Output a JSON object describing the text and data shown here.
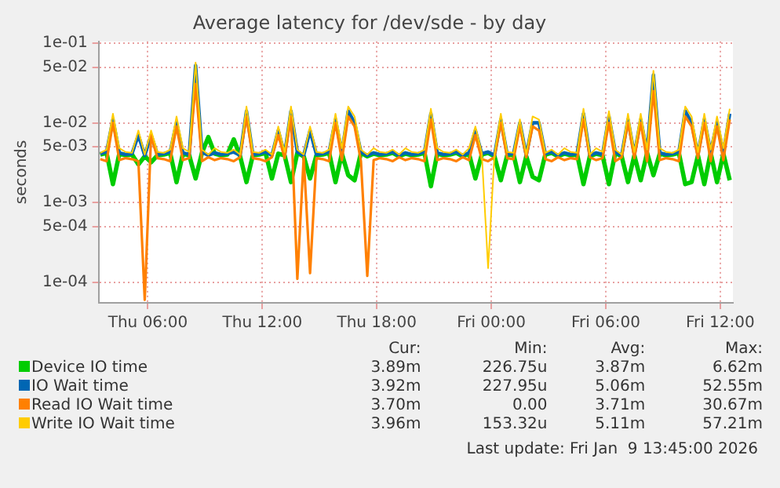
{
  "chart_data": {
    "type": "line",
    "title": "Average latency for /dev/sde - by day",
    "ylabel": "seconds",
    "log": "y",
    "grid": true,
    "legend": "bottom",
    "marker": "none",
    "line_style": "solid",
    "x": [
      "2026-01-08T03:30",
      "2026-01-08T03:50",
      "2026-01-08T04:10",
      "2026-01-08T04:30",
      "2026-01-08T04:50",
      "2026-01-08T05:10",
      "2026-01-08T05:30",
      "2026-01-08T05:50",
      "2026-01-08T06:10",
      "2026-01-08T06:30",
      "2026-01-08T06:50",
      "2026-01-08T07:10",
      "2026-01-08T07:30",
      "2026-01-08T07:50",
      "2026-01-08T08:10",
      "2026-01-08T08:30",
      "2026-01-08T08:50",
      "2026-01-08T09:10",
      "2026-01-08T09:30",
      "2026-01-08T09:50",
      "2026-01-08T10:10",
      "2026-01-08T10:30",
      "2026-01-08T10:50",
      "2026-01-08T11:10",
      "2026-01-08T11:30",
      "2026-01-08T11:50",
      "2026-01-08T12:10",
      "2026-01-08T12:30",
      "2026-01-08T12:50",
      "2026-01-08T13:10",
      "2026-01-08T13:30",
      "2026-01-08T13:50",
      "2026-01-08T14:10",
      "2026-01-08T14:30",
      "2026-01-08T14:50",
      "2026-01-08T15:10",
      "2026-01-08T15:30",
      "2026-01-08T15:50",
      "2026-01-08T16:10",
      "2026-01-08T16:30",
      "2026-01-08T16:50",
      "2026-01-08T17:10",
      "2026-01-08T17:30",
      "2026-01-08T17:50",
      "2026-01-08T18:10",
      "2026-01-08T18:30",
      "2026-01-08T18:50",
      "2026-01-08T19:10",
      "2026-01-08T19:30",
      "2026-01-08T19:50",
      "2026-01-08T20:10",
      "2026-01-08T20:30",
      "2026-01-08T20:50",
      "2026-01-08T21:10",
      "2026-01-08T21:30",
      "2026-01-08T21:50",
      "2026-01-08T22:10",
      "2026-01-08T22:30",
      "2026-01-08T22:50",
      "2026-01-08T23:10",
      "2026-01-08T23:30",
      "2026-01-08T23:50",
      "2026-01-09T00:10",
      "2026-01-09T00:30",
      "2026-01-09T00:50",
      "2026-01-09T01:10",
      "2026-01-09T01:30",
      "2026-01-09T01:50",
      "2026-01-09T02:10",
      "2026-01-09T02:30",
      "2026-01-09T02:50",
      "2026-01-09T03:10",
      "2026-01-09T03:30",
      "2026-01-09T03:50",
      "2026-01-09T04:10",
      "2026-01-09T04:30",
      "2026-01-09T04:50",
      "2026-01-09T05:10",
      "2026-01-09T05:30",
      "2026-01-09T05:50",
      "2026-01-09T06:10",
      "2026-01-09T06:30",
      "2026-01-09T06:50",
      "2026-01-09T07:10",
      "2026-01-09T07:30",
      "2026-01-09T07:50",
      "2026-01-09T08:10",
      "2026-01-09T08:30",
      "2026-01-09T08:50",
      "2026-01-09T09:10",
      "2026-01-09T09:30",
      "2026-01-09T09:50",
      "2026-01-09T10:10",
      "2026-01-09T10:30",
      "2026-01-09T10:50",
      "2026-01-09T11:10",
      "2026-01-09T11:30",
      "2026-01-09T11:50",
      "2026-01-09T12:10",
      "2026-01-09T12:30"
    ],
    "xlim": [
      "2026-01-08T03:25",
      "2026-01-09T12:40"
    ],
    "xticks": [
      {
        "value": "2026-01-08T06:00",
        "label": "Thu 06:00"
      },
      {
        "value": "2026-01-08T12:00",
        "label": "Thu 12:00"
      },
      {
        "value": "2026-01-08T18:00",
        "label": "Thu 18:00"
      },
      {
        "value": "2026-01-09T00:00",
        "label": "Fri 00:00"
      },
      {
        "value": "2026-01-09T06:00",
        "label": "Fri 06:00"
      },
      {
        "value": "2026-01-09T12:00",
        "label": "Fri 12:00"
      }
    ],
    "ylim": [
      5.5e-05,
      0.105
    ],
    "yticks": [
      {
        "value": 0.0001,
        "label": "1e-04"
      },
      {
        "value": 0.0005,
        "label": "5e-04"
      },
      {
        "value": 0.001,
        "label": "1e-03"
      },
      {
        "value": 0.005,
        "label": "5e-03"
      },
      {
        "value": 0.01,
        "label": "1e-02"
      },
      {
        "value": 0.05,
        "label": "5e-02"
      },
      {
        "value": 0.1,
        "label": "1e-01"
      }
    ],
    "series": [
      {
        "name": "Device IO time",
        "color": "#00cc00",
        "values": [
          0.004,
          0.0042,
          0.0017,
          0.0041,
          0.0039,
          0.004,
          0.003,
          0.0038,
          0.0032,
          0.0039,
          0.004,
          0.0042,
          0.0018,
          0.0041,
          0.0039,
          0.002,
          0.0042,
          0.00662,
          0.0041,
          0.0039,
          0.004,
          0.0062,
          0.0038,
          0.0018,
          0.0039,
          0.004,
          0.0042,
          0.002,
          0.0041,
          0.0039,
          0.0018,
          0.0042,
          0.0038,
          0.002,
          0.0039,
          0.004,
          0.0042,
          0.0018,
          0.0041,
          0.0022,
          0.0019,
          0.0042,
          0.0038,
          0.0041,
          0.0039,
          0.004,
          0.0042,
          0.0038,
          0.0041,
          0.0039,
          0.004,
          0.0042,
          0.0016,
          0.0041,
          0.0039,
          0.004,
          0.0042,
          0.0038,
          0.0041,
          0.002,
          0.004,
          0.0042,
          0.0038,
          0.0019,
          0.0039,
          0.004,
          0.0018,
          0.0038,
          0.0021,
          0.0019,
          0.004,
          0.0042,
          0.0038,
          0.0041,
          0.0039,
          0.004,
          0.0017,
          0.0038,
          0.0041,
          0.0039,
          0.0017,
          0.0042,
          0.0038,
          0.0018,
          0.0039,
          0.0019,
          0.0042,
          0.0022,
          0.0041,
          0.0039,
          0.004,
          0.0042,
          0.0017,
          0.0018,
          0.0039,
          0.0017,
          0.0042,
          0.0018,
          0.0041,
          0.0019
        ]
      },
      {
        "name": "IO Wait time",
        "color": "#0066b3",
        "values": [
          0.0041,
          0.0043,
          0.011,
          0.0042,
          0.004,
          0.0041,
          0.007,
          0.0039,
          0.007,
          0.004,
          0.0041,
          0.0043,
          0.01,
          0.0042,
          0.004,
          0.05255,
          0.0043,
          0.0039,
          0.0042,
          0.004,
          0.0041,
          0.0043,
          0.0039,
          0.014,
          0.004,
          0.0041,
          0.0043,
          0.0039,
          0.008,
          0.004,
          0.014,
          0.0043,
          0.0039,
          0.008,
          0.004,
          0.0041,
          0.0043,
          0.011,
          0.0042,
          0.014,
          0.01,
          0.0043,
          0.0039,
          0.0042,
          0.004,
          0.0041,
          0.0043,
          0.0039,
          0.0042,
          0.004,
          0.0041,
          0.0043,
          0.013,
          0.0042,
          0.004,
          0.0041,
          0.0043,
          0.0039,
          0.0042,
          0.008,
          0.0041,
          0.0043,
          0.0039,
          0.011,
          0.004,
          0.0041,
          0.01,
          0.0039,
          0.01,
          0.01,
          0.0041,
          0.0043,
          0.0039,
          0.0042,
          0.004,
          0.0041,
          0.013,
          0.0039,
          0.0042,
          0.004,
          0.012,
          0.0043,
          0.0039,
          0.011,
          0.004,
          0.011,
          0.0043,
          0.04,
          0.0042,
          0.004,
          0.0041,
          0.0043,
          0.014,
          0.01,
          0.004,
          0.011,
          0.0043,
          0.01,
          0.0042,
          0.013
        ]
      },
      {
        "name": "Read IO Wait time",
        "color": "#ff8000",
        "values": [
          0.0035,
          0.0033,
          0.01,
          0.0034,
          0.0036,
          0.0035,
          0.0033,
          6e-05,
          0.007,
          0.0036,
          0.0035,
          0.0033,
          0.009,
          0.0034,
          0.0036,
          0.03067,
          0.0033,
          0.0037,
          0.0034,
          0.0036,
          0.0035,
          0.0033,
          0.0037,
          0.012,
          0.0036,
          0.0035,
          0.0033,
          0.0037,
          0.007,
          0.0036,
          0.012,
          0.00011,
          0.0037,
          0.00013,
          0.0036,
          0.0035,
          0.0033,
          0.01,
          0.0034,
          0.012,
          0.009,
          0.0033,
          0.00012,
          0.0034,
          0.0036,
          0.0035,
          0.0033,
          0.0037,
          0.0034,
          0.0036,
          0.0035,
          0.0033,
          0.011,
          0.0034,
          0.0036,
          0.0035,
          0.0033,
          0.0037,
          0.0034,
          0.007,
          0.0035,
          0.0033,
          0.0037,
          0.01,
          0.0036,
          0.0035,
          0.009,
          0.0037,
          0.009,
          0.008,
          0.0035,
          0.0033,
          0.0037,
          0.0034,
          0.0036,
          0.0035,
          0.011,
          0.0037,
          0.0034,
          0.0036,
          0.01,
          0.0033,
          0.0037,
          0.01,
          0.0036,
          0.01,
          0.0033,
          0.025,
          0.0034,
          0.0036,
          0.0035,
          0.0033,
          0.012,
          0.009,
          0.0036,
          0.01,
          0.0033,
          0.009,
          0.0034,
          0.011
        ]
      },
      {
        "name": "Write IO Wait time",
        "color": "#ffcc00",
        "values": [
          0.0042,
          0.0046,
          0.013,
          0.0048,
          0.0043,
          0.0042,
          0.008,
          0.004,
          0.008,
          0.0043,
          0.0042,
          0.0046,
          0.012,
          0.0048,
          0.0043,
          0.057,
          0.0046,
          0.004,
          0.0048,
          0.0043,
          0.0042,
          0.0046,
          0.004,
          0.016,
          0.0043,
          0.0042,
          0.0046,
          0.004,
          0.009,
          0.0043,
          0.016,
          0.0046,
          0.004,
          0.009,
          0.0043,
          0.0042,
          0.0046,
          0.013,
          0.0048,
          0.016,
          0.012,
          0.0046,
          0.004,
          0.0048,
          0.0043,
          0.0042,
          0.0046,
          0.004,
          0.0048,
          0.0043,
          0.0042,
          0.0046,
          0.015,
          0.0048,
          0.0043,
          0.0042,
          0.0046,
          0.004,
          0.0048,
          0.009,
          0.0042,
          0.00015,
          0.004,
          0.013,
          0.0043,
          0.0042,
          0.011,
          0.004,
          0.012,
          0.011,
          0.0042,
          0.0046,
          0.004,
          0.0048,
          0.0043,
          0.0042,
          0.015,
          0.004,
          0.0048,
          0.0043,
          0.014,
          0.0046,
          0.004,
          0.013,
          0.0043,
          0.013,
          0.0046,
          0.045,
          0.0048,
          0.0043,
          0.0042,
          0.0046,
          0.016,
          0.012,
          0.0043,
          0.013,
          0.0046,
          0.012,
          0.0048,
          0.015
        ]
      }
    ],
    "annotations": [
      "Cur:",
      "Min:",
      "Avg:",
      "Max:",
      "3.89m",
      "226.75u",
      "3.87m",
      "6.62m",
      "3.92m",
      "227.95u",
      "5.06m",
      "52.55m",
      "3.70m",
      "0.00",
      "3.71m",
      "30.67m",
      "3.96m",
      "153.32u",
      "5.11m",
      "57.21m",
      "Last update: Fri Jan  9 13:45:00 2026"
    ]
  }
}
